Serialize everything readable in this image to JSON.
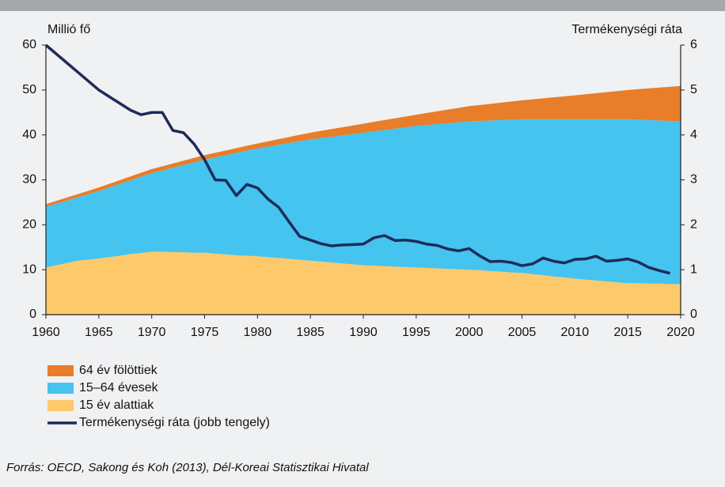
{
  "chart_data": {
    "type": "stacked_area_line",
    "ylabel": "Millió fő",
    "y2label": "Termékenységi ráta",
    "x": [
      1960,
      1961,
      1962,
      1963,
      1964,
      1965,
      1966,
      1967,
      1968,
      1969,
      1970,
      1971,
      1972,
      1973,
      1974,
      1975,
      1976,
      1977,
      1978,
      1979,
      1980,
      1981,
      1982,
      1983,
      1984,
      1985,
      1986,
      1987,
      1988,
      1989,
      1990,
      1991,
      1992,
      1993,
      1994,
      1995,
      1996,
      1997,
      1998,
      1999,
      2000,
      2001,
      2002,
      2003,
      2004,
      2005,
      2006,
      2007,
      2008,
      2009,
      2010,
      2011,
      2012,
      2013,
      2014,
      2015,
      2016,
      2017,
      2018,
      2019,
      2020
    ],
    "series": [
      {
        "name": "15 év alattiak",
        "color": "#fec96a",
        "kind": "area",
        "values": [
          10.5,
          11,
          11.5,
          12,
          12.2,
          12.5,
          12.8,
          13.1,
          13.5,
          13.7,
          14,
          14,
          13.9,
          13.9,
          13.8,
          13.8,
          13.6,
          13.4,
          13.2,
          13.1,
          13,
          12.8,
          12.6,
          12.4,
          12.2,
          12,
          11.8,
          11.6,
          11.4,
          11.2,
          11,
          10.9,
          10.8,
          10.7,
          10.6,
          10.5,
          10.4,
          10.3,
          10.2,
          10.1,
          10,
          9.9,
          9.7,
          9.6,
          9.4,
          9.3,
          9,
          8.8,
          8.5,
          8.3,
          8,
          7.8,
          7.6,
          7.4,
          7.2,
          7,
          7,
          6.9,
          6.9,
          6.8,
          6.8
        ]
      },
      {
        "name": "15–64 évesek",
        "color": "#45c4ef",
        "kind": "area",
        "values": [
          13.5,
          13.7,
          13.9,
          14.1,
          14.6,
          15,
          15.5,
          16,
          16.4,
          17,
          17.5,
          18.1,
          18.8,
          19.4,
          20.1,
          20.7,
          21.4,
          22.1,
          22.8,
          23.4,
          24,
          24.6,
          25.2,
          25.8,
          26.4,
          27,
          27.5,
          28,
          28.5,
          29,
          29.5,
          29.9,
          30.3,
          30.7,
          31.1,
          31.5,
          31.8,
          32.1,
          32.4,
          32.7,
          33,
          33.2,
          33.5,
          33.7,
          34,
          34.2,
          34.5,
          34.7,
          35,
          35.2,
          35.5,
          35.7,
          35.9,
          36.1,
          36.3,
          36.5,
          36.4,
          36.4,
          36.3,
          36.3,
          36.2
        ]
      },
      {
        "name": "64 év fölöttiek",
        "color": "#e87d2a",
        "kind": "area",
        "values": [
          0.6,
          0.64,
          0.68,
          0.72,
          0.76,
          0.8,
          0.82,
          0.84,
          0.86,
          0.88,
          0.9,
          0.92,
          0.94,
          0.96,
          0.98,
          1.0,
          1.02,
          1.04,
          1.06,
          1.08,
          1.1,
          1.18,
          1.26,
          1.34,
          1.42,
          1.5,
          1.6,
          1.7,
          1.8,
          1.9,
          2.0,
          2.1,
          2.2,
          2.3,
          2.4,
          2.5,
          2.68,
          2.86,
          3.04,
          3.22,
          3.4,
          3.56,
          3.72,
          3.88,
          4.04,
          4.2,
          4.42,
          4.64,
          4.86,
          5.08,
          5.3,
          5.54,
          5.78,
          6.02,
          6.26,
          6.5,
          6.78,
          7.06,
          7.34,
          7.62,
          7.9
        ]
      },
      {
        "name": "Termékenységi ráta (jobb tengely)",
        "color": "#1e2b5a",
        "kind": "line",
        "axis": "y2",
        "values": [
          6.0,
          5.8,
          5.6,
          5.4,
          5.2,
          5.0,
          4.85,
          4.7,
          4.55,
          4.45,
          4.5,
          4.5,
          4.1,
          4.05,
          3.8,
          3.45,
          3.0,
          2.99,
          2.65,
          2.9,
          2.82,
          2.57,
          2.39,
          2.06,
          1.74,
          1.66,
          1.58,
          1.53,
          1.55,
          1.56,
          1.57,
          1.71,
          1.76,
          1.65,
          1.66,
          1.63,
          1.57,
          1.54,
          1.46,
          1.42,
          1.47,
          1.31,
          1.18,
          1.19,
          1.16,
          1.09,
          1.13,
          1.26,
          1.19,
          1.15,
          1.23,
          1.24,
          1.3,
          1.19,
          1.21,
          1.24,
          1.17,
          1.05,
          0.98,
          0.92,
          null
        ]
      }
    ],
    "xlim": [
      1960,
      2020
    ],
    "xticks": [
      1960,
      1965,
      1970,
      1975,
      1980,
      1985,
      1990,
      1995,
      2000,
      2005,
      2010,
      2015,
      2020
    ],
    "ylim": [
      0,
      60
    ],
    "yticks": [
      0,
      10,
      20,
      30,
      40,
      50,
      60
    ],
    "y2lim": [
      0,
      6
    ],
    "y2ticks": [
      0,
      1,
      2,
      3,
      4,
      5,
      6
    ],
    "legend_order": [
      2,
      1,
      0,
      3
    ],
    "source": "Forrás: OECD, Sakong és Koh (2013), Dél-Koreai Statisztikai Hivatal"
  }
}
